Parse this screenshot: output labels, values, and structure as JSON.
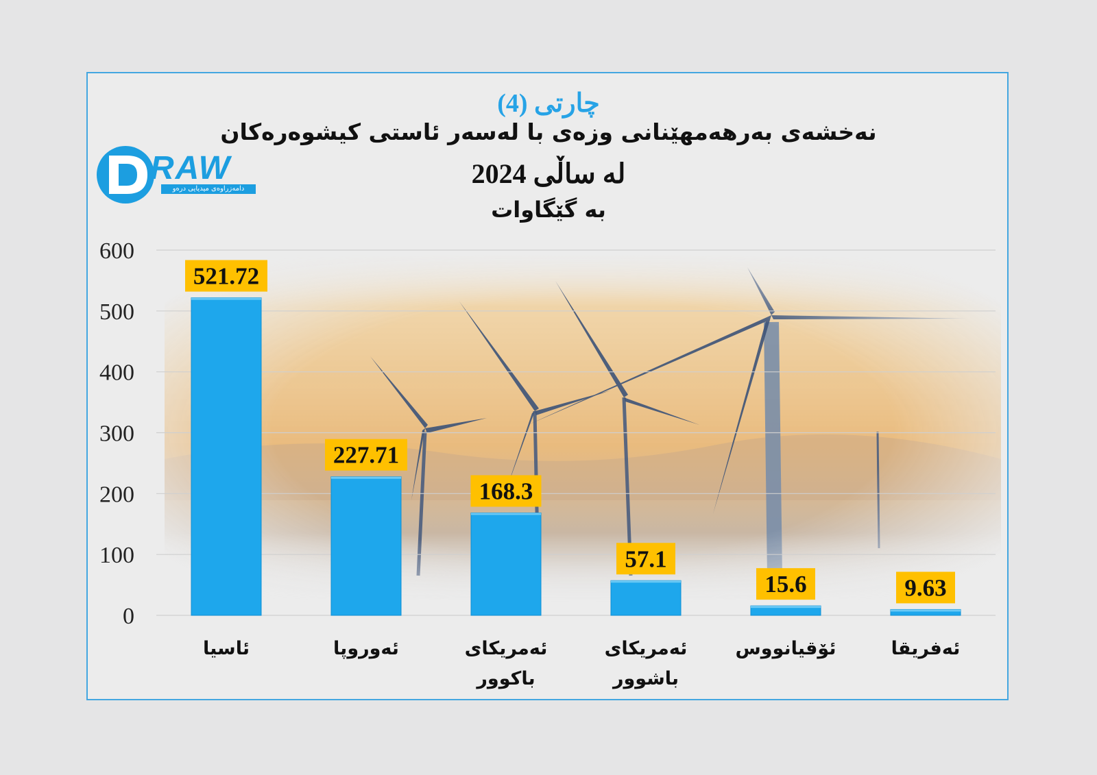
{
  "chart_label": "چارتی (4)",
  "title_lines": [
    "نەخشەی بەرهەمهێنانی وزەی با لەسەر ئاستی کیشوەرەکان",
    "لە ساڵی 2024",
    "بە گێگاوات"
  ],
  "logo": {
    "word": "RAW",
    "subtitle": "دامەزراوەی میدیایی درەو"
  },
  "colors": {
    "bar": "#1ea7ec",
    "label_bg": "#ffc000",
    "card_border": "#43a6e0",
    "title_accent": "#27a3e6"
  },
  "chart_data": {
    "type": "bar",
    "categories": [
      [
        "ئاسیا"
      ],
      [
        "ئەوروپا"
      ],
      [
        "ئەمریکای",
        "باکوور"
      ],
      [
        "ئەمریکای",
        "باشوور"
      ],
      [
        "ئۆقیانووس"
      ],
      [
        "ئەفریقا"
      ]
    ],
    "values": [
      521.72,
      227.71,
      168.3,
      57.1,
      15.6,
      9.63
    ],
    "data_labels": [
      "521.72",
      "227.71",
      "168.3",
      "57.1",
      "15.6",
      "9.63"
    ],
    "ylim": [
      0,
      600
    ],
    "yticks": [
      0,
      100,
      200,
      300,
      400,
      500,
      600
    ],
    "grid": true,
    "legend": "none"
  }
}
